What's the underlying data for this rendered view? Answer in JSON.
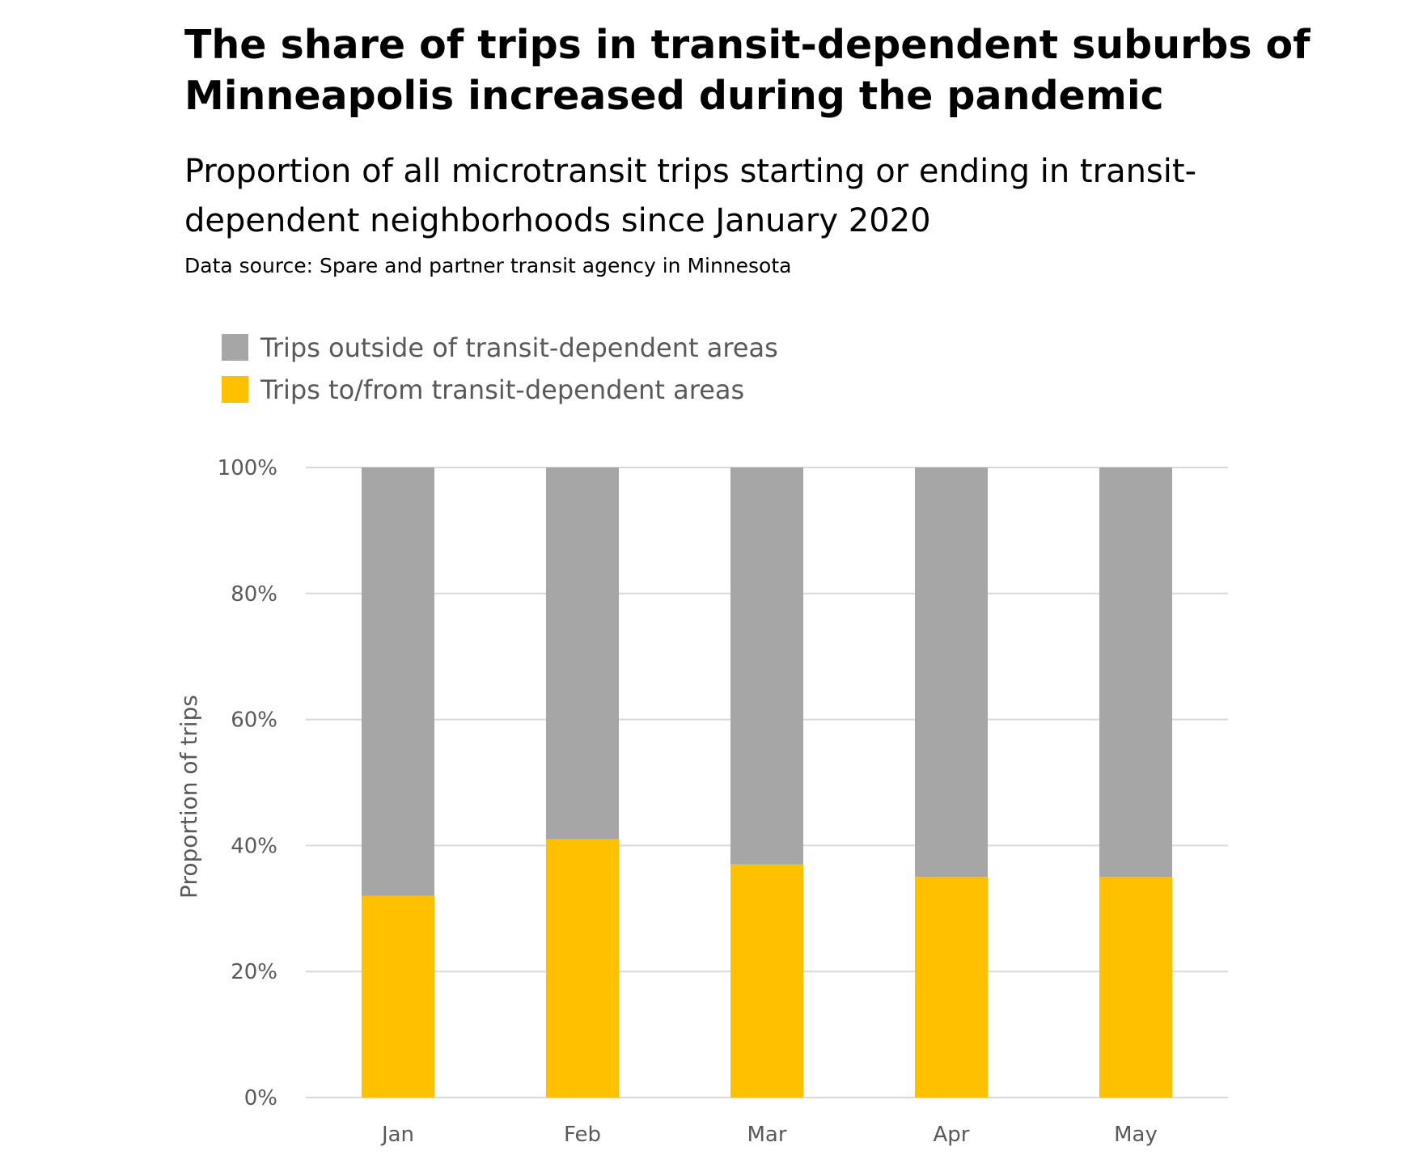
{
  "title": "The share of trips in transit-dependent suburbs of Minneapolis increased during the pandemic",
  "subtitle": "Proportion of all microtransit trips starting or ending in transit-dependent neighborhoods since January 2020",
  "source": "Data source: Spare and partner transit agency in Minnesota",
  "chart_data": {
    "type": "bar",
    "stacked": true,
    "categories": [
      "Jan",
      "Feb",
      "Mar",
      "Apr",
      "May"
    ],
    "series": [
      {
        "name": "Trips to/from transit-dependent areas",
        "color": "#FFC000",
        "values": [
          32,
          41,
          37,
          35,
          35
        ]
      },
      {
        "name": "Trips outside of transit-dependent areas",
        "color": "#A6A6A6",
        "values": [
          68,
          59,
          63,
          65,
          65
        ]
      }
    ],
    "legend_order": [
      1,
      0
    ],
    "legend_position": "top-left",
    "xlabel": "",
    "ylabel": "Proportion of trips",
    "ylim": [
      0,
      100
    ],
    "yticks": [
      0,
      20,
      40,
      60,
      80,
      100
    ],
    "ytick_labels": [
      "0%",
      "20%",
      "40%",
      "60%",
      "80%",
      "100%"
    ],
    "grid": true,
    "grid_color": "#D9D9D9"
  }
}
